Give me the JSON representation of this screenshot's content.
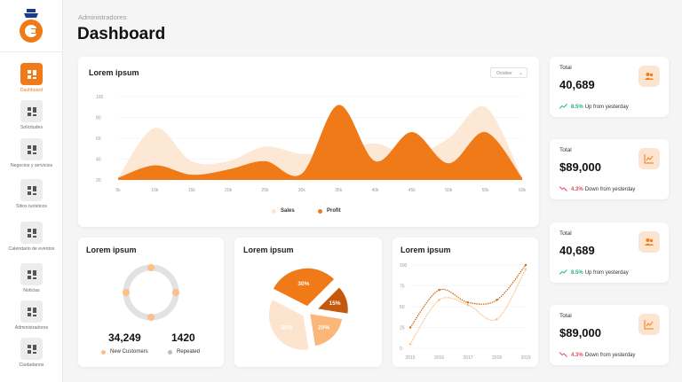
{
  "sidebar": {
    "logo": "royal-crest-logo",
    "items": [
      {
        "label": "Dashboard",
        "icon": "dashboard-icon",
        "active": true
      },
      {
        "label": "Solicitudes",
        "icon": "request-doc-icon"
      },
      {
        "label": "Negocios y servicios",
        "icon": "business-building-icon"
      },
      {
        "label": "Sitios turísticos",
        "icon": "tourist-site-icon"
      },
      {
        "label": "Calendario de eventos",
        "icon": "calendar-icon"
      },
      {
        "label": "Noticias",
        "icon": "news-icon"
      },
      {
        "label": "Administradores",
        "icon": "admin-user-icon"
      },
      {
        "label": "Ciudadanos",
        "icon": "citizens-icon"
      }
    ]
  },
  "header": {
    "breadcrumb": "Administradores",
    "title": "Dashboard"
  },
  "main_chart": {
    "title": "Lorem ipsum",
    "dropdown": "October",
    "legend": [
      "Sales",
      "Profit"
    ]
  },
  "customers_card": {
    "title": "Lorem ipsum",
    "new_value": "34,249",
    "repeated_value": "1420",
    "new_label": "New Customers",
    "repeated_label": "Repeated"
  },
  "pie_card": {
    "title": "Lorem ipsum"
  },
  "line_card": {
    "title": "Lorem ipsum"
  },
  "stats": [
    {
      "label": "Total",
      "value": "40,689",
      "pct": "8.5%",
      "trend_text": "Up from yesterday",
      "direction": "up",
      "icon": "users-icon"
    },
    {
      "label": "Total",
      "value": "$89,000",
      "pct": "4.3%",
      "trend_text": "Down from yesterday",
      "direction": "down",
      "icon": "chart-line-icon"
    },
    {
      "label": "Total",
      "value": "40,689",
      "pct": "8.5%",
      "trend_text": "Up from yesterday",
      "direction": "up",
      "icon": "users-icon"
    },
    {
      "label": "Total",
      "value": "$89,000",
      "pct": "4.3%",
      "trend_text": "Down from yesterday",
      "direction": "down",
      "icon": "chart-line-icon"
    }
  ],
  "colors": {
    "accent": "#f07a17",
    "accent_light": "#fde4cf",
    "up": "#21b47a",
    "down": "#e44b5b",
    "grey": "#e2e2e2"
  },
  "chart_data": [
    {
      "type": "area",
      "x_ticks": [
        "5k",
        "10k",
        "15k",
        "20k",
        "25k",
        "30k",
        "35k",
        "40k",
        "45k",
        "50k",
        "55k",
        "60k"
      ],
      "y_ticks": [
        "20",
        "40",
        "60",
        "80",
        "100"
      ],
      "ylim": [
        20,
        100
      ],
      "xlim": [
        5,
        60
      ],
      "grid": true,
      "legend_position": "bottom",
      "series": [
        {
          "name": "Sales",
          "x": [
            5,
            10,
            15,
            20,
            25,
            30,
            35,
            40,
            45,
            50,
            55,
            60
          ],
          "values": [
            22,
            70,
            38,
            38,
            52,
            45,
            48,
            55,
            44,
            60,
            90,
            22
          ]
        },
        {
          "name": "Profit",
          "x": [
            5,
            10,
            15,
            20,
            25,
            30,
            35,
            40,
            45,
            50,
            55,
            60
          ],
          "values": [
            22,
            34,
            25,
            30,
            38,
            26,
            92,
            38,
            66,
            36,
            66,
            22
          ]
        }
      ]
    },
    {
      "type": "pie",
      "values": [
        30,
        15,
        20,
        35
      ],
      "labels": [
        "30%",
        "15%",
        "20%",
        "35%"
      ]
    },
    {
      "type": "line",
      "x_ticks": [
        "2015",
        "2016",
        "2017",
        "2018",
        "2019"
      ],
      "y_ticks": [
        "0",
        "25",
        "50",
        "75",
        "100"
      ],
      "ylim": [
        0,
        100
      ],
      "grid": true,
      "series": [
        {
          "x": [
            2015,
            2016,
            2017,
            2018,
            2019
          ],
          "values": [
            25,
            70,
            55,
            58,
            100
          ]
        },
        {
          "x": [
            2015,
            2016,
            2017,
            2018,
            2019
          ],
          "values": [
            5,
            58,
            52,
            35,
            95
          ]
        }
      ]
    }
  ]
}
